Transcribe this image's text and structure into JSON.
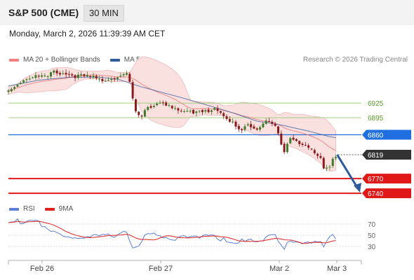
{
  "header": {
    "title": "S&P 500 (CME)",
    "timeframe": "30 MIN",
    "datetime": "Monday, March 2, 2026 11:39:39 AM CET"
  },
  "legend": {
    "bollinger": {
      "label": "MA 20 + Bollinger Bands",
      "color": "#f08080"
    },
    "ma50": {
      "label": "MA 50",
      "color": "#2e5b9a"
    },
    "copyright": "Research © 2026 Trading Central"
  },
  "rsi_legend": {
    "rsi": {
      "label": "RSI",
      "color": "#5b7fd6"
    },
    "ma9": {
      "label": "9MA",
      "color": "#e02020"
    }
  },
  "colors": {
    "up": "#3d7a2a",
    "down": "#8b1a1a",
    "green_level": "#a3cf80",
    "green_text": "#5a9a2a",
    "blue_level": "#1f6fe0",
    "red_level": "#e01818",
    "last_price": "#333333",
    "arrow": "#2e5b9a",
    "band_fill": "#fbe0e0",
    "band_edge": "#f2b8b8"
  },
  "chart_data": {
    "type": "candlestick",
    "ylim": [
      6720,
      7000
    ],
    "x_labels": [
      "Feb 26",
      "Feb 27",
      "Mar 2",
      "Mar 3"
    ],
    "levels": [
      {
        "value": 6925,
        "label": "6925",
        "kind": "green"
      },
      {
        "value": 6895,
        "label": "6895",
        "kind": "green"
      },
      {
        "value": 6860,
        "label": "6860",
        "kind": "blue"
      },
      {
        "value": 6819,
        "label": "6819",
        "kind": "last"
      },
      {
        "value": 6770,
        "label": "6770",
        "kind": "red"
      },
      {
        "value": 6740,
        "label": "6740",
        "kind": "red"
      }
    ],
    "anchors": [
      [
        0,
        6950
      ],
      [
        4,
        6970
      ],
      [
        8,
        6980
      ],
      [
        13,
        6978
      ],
      [
        15,
        6990
      ],
      [
        19,
        6985
      ],
      [
        23,
        6980
      ],
      [
        27,
        6978
      ],
      [
        31,
        6972
      ],
      [
        35,
        6978
      ],
      [
        38,
        6983
      ],
      [
        39,
        6985
      ],
      [
        40,
        6965
      ],
      [
        41,
        6930
      ],
      [
        42,
        6905
      ],
      [
        44,
        6895
      ],
      [
        46,
        6918
      ],
      [
        48,
        6922
      ],
      [
        51,
        6928
      ],
      [
        53,
        6918
      ],
      [
        55,
        6910
      ],
      [
        58,
        6905
      ],
      [
        62,
        6908
      ],
      [
        65,
        6912
      ],
      [
        67,
        6910
      ],
      [
        68,
        6912
      ],
      [
        70,
        6902
      ],
      [
        72,
        6890
      ],
      [
        75,
        6880
      ],
      [
        77,
        6870
      ],
      [
        79,
        6885
      ],
      [
        81,
        6875
      ],
      [
        83,
        6872
      ],
      [
        85,
        6886
      ],
      [
        87,
        6882
      ],
      [
        88,
        6876
      ],
      [
        91,
        6828
      ],
      [
        93,
        6855
      ],
      [
        95,
        6848
      ],
      [
        97,
        6840
      ],
      [
        99,
        6832
      ],
      [
        101,
        6822
      ],
      [
        103,
        6808
      ],
      [
        104,
        6790
      ],
      [
        106,
        6796
      ],
      [
        107,
        6812
      ],
      [
        108,
        6819
      ]
    ],
    "candle_count": 109,
    "ma50_anchors": [
      [
        0,
        6960
      ],
      [
        10,
        6972
      ],
      [
        20,
        6978
      ],
      [
        30,
        6978
      ],
      [
        36,
        6974
      ],
      [
        44,
        6958
      ],
      [
        56,
        6938
      ],
      [
        66,
        6920
      ],
      [
        74,
        6905
      ],
      [
        82,
        6888
      ],
      [
        90,
        6880
      ],
      [
        100,
        6866
      ],
      [
        106,
        6856
      ]
    ],
    "rsi": {
      "ticks": [
        70,
        50,
        30
      ],
      "ylim": [
        10,
        80
      ],
      "anchors": [
        [
          0,
          72
        ],
        [
          4,
          75
        ],
        [
          8,
          78
        ],
        [
          10,
          76
        ],
        [
          12,
          60
        ],
        [
          14,
          55
        ],
        [
          18,
          48
        ],
        [
          24,
          46
        ],
        [
          30,
          45
        ],
        [
          36,
          52
        ],
        [
          39,
          60
        ],
        [
          40,
          45
        ],
        [
          41,
          22
        ],
        [
          43,
          30
        ],
        [
          45,
          45
        ],
        [
          47,
          52
        ],
        [
          50,
          50
        ],
        [
          55,
          44
        ],
        [
          60,
          46
        ],
        [
          65,
          52
        ],
        [
          68,
          50
        ],
        [
          70,
          42
        ],
        [
          73,
          36
        ],
        [
          75,
          32
        ],
        [
          77,
          38
        ],
        [
          80,
          44
        ],
        [
          83,
          42
        ],
        [
          86,
          50
        ],
        [
          88,
          46
        ],
        [
          90,
          30
        ],
        [
          91,
          22
        ],
        [
          93,
          44
        ],
        [
          96,
          40
        ],
        [
          100,
          38
        ],
        [
          103,
          33
        ],
        [
          104,
          28
        ],
        [
          106,
          46
        ],
        [
          108,
          48
        ]
      ]
    },
    "projection": {
      "from_index": 108,
      "from_value": 6819,
      "to_value": 6750
    }
  }
}
